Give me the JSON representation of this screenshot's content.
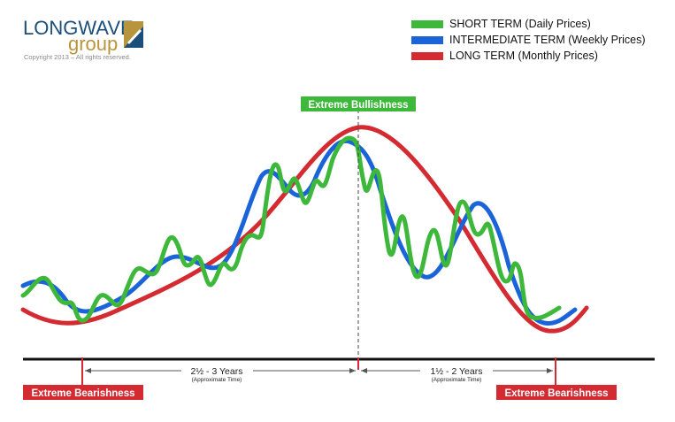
{
  "logo": {
    "line1": "LONGWAVE",
    "line2": "group",
    "copyright": "Copyright 2013 – All rights reserved."
  },
  "legend": [
    {
      "label": "SHORT TERM (Daily Prices)",
      "color": "#3db83a"
    },
    {
      "label": "INTERMEDIATE TERM (Weekly Prices)",
      "color": "#1a63d8"
    },
    {
      "label": "LONG TERM (Monthly Prices)",
      "color": "#d42a32"
    }
  ],
  "labels": {
    "peak": "Extreme Bullishness",
    "trough_left": "Extreme Bearishness",
    "trough_right": "Extreme Bearishness"
  },
  "durations": {
    "rise": {
      "main": "2½ - 3 Years",
      "sub": "(Approximate Time)"
    },
    "fall": {
      "main": "1½ - 2 Years",
      "sub": "(Approximate Time)"
    }
  },
  "colors": {
    "short": "#3db83a",
    "intermediate": "#1a63d8",
    "long": "#d42a32",
    "label_bg": "#d42a32",
    "peak_bg": "#3db83a"
  }
}
